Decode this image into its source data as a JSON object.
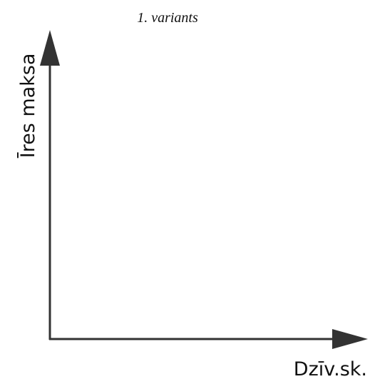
{
  "title": "1. variants",
  "y_axis_label": "Īres maksa",
  "x_axis_label": "Dzīv.sk."
}
